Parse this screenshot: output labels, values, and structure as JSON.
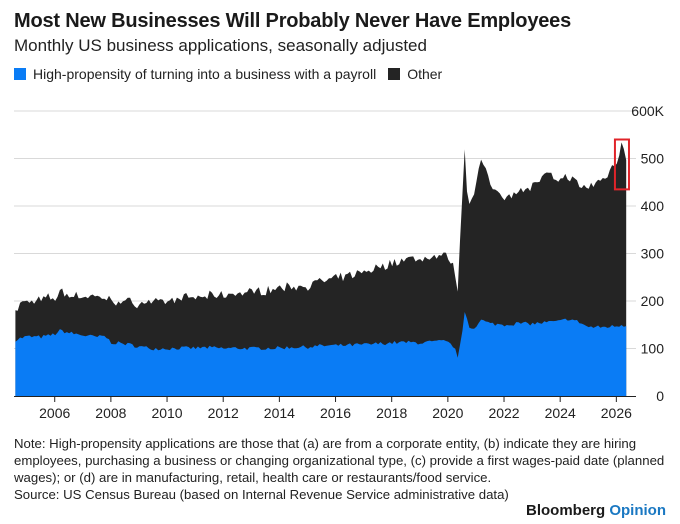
{
  "header": {
    "title": "Most New Businesses Will Probably Never Have Employees",
    "subtitle": "Monthly US business applications, seasonally adjusted"
  },
  "legend": {
    "items": [
      {
        "label": "High-propensity of turning into a business with a payroll",
        "color": "#0a7cf5"
      },
      {
        "label": "Other",
        "color": "#242424"
      }
    ]
  },
  "footer": {
    "note": "Note: High-propensity applications are those that (a) are from a corporate entity, (b) indicate they are hiring employees, purchasing a business or changing organizational type, (c) provide a first wages-paid date (planned wages); or (d) are in manufacturing, retail, health care or restaurants/food service.",
    "source": "Source: US Census Bureau (based on Internal Revenue Service administrative data)",
    "brand_main": "Bloomberg",
    "brand_accent": "Opinion"
  },
  "colors": {
    "high_propensity": "#0a7cf5",
    "other": "#242424",
    "grid": "#d9d9d9",
    "highlight_box": "#e0242a"
  },
  "chart_data": {
    "type": "area",
    "stacked": true,
    "title": "Most New Businesses Will Probably Never Have Employees",
    "subtitle": "Monthly US business applications, seasonally adjusted",
    "xlabel": "",
    "ylabel": "",
    "xlim": [
      2004.55,
      2026.7
    ],
    "ylim": [
      0,
      600
    ],
    "y_ticks": [
      0,
      100,
      200,
      300,
      400,
      500,
      600
    ],
    "y_tick_labels": [
      "0",
      "100",
      "200",
      "300",
      "400",
      "500",
      "600K"
    ],
    "x_ticks": [
      "2006",
      "2008",
      "2010",
      "2012",
      "2014",
      "2016",
      "2018",
      "2020",
      "2022",
      "2024",
      "2026"
    ],
    "grid": true,
    "legend_position": "top-left",
    "highlight": {
      "x_start": 2025.95,
      "x_end": 2026.45,
      "y_start": 435,
      "y_end": 540
    },
    "series": [
      {
        "name": "High-propensity of turning into a business with a payroll",
        "color": "#0a7cf5",
        "points": [
          [
            2004.6,
            118
          ],
          [
            2004.8,
            122
          ],
          [
            2005.0,
            125
          ],
          [
            2005.5,
            124
          ],
          [
            2005.8,
            127
          ],
          [
            2006.0,
            130
          ],
          [
            2006.2,
            138
          ],
          [
            2006.5,
            133
          ],
          [
            2007.0,
            128
          ],
          [
            2007.5,
            124
          ],
          [
            2007.8,
            126
          ],
          [
            2008.0,
            113
          ],
          [
            2008.5,
            110
          ],
          [
            2009.0,
            104
          ],
          [
            2009.5,
            100
          ],
          [
            2010.0,
            100
          ],
          [
            2010.5,
            101
          ],
          [
            2011.0,
            101
          ],
          [
            2011.5,
            102
          ],
          [
            2012.0,
            100
          ],
          [
            2012.5,
            101
          ],
          [
            2013.0,
            100
          ],
          [
            2013.5,
            101
          ],
          [
            2014.0,
            101
          ],
          [
            2014.5,
            103
          ],
          [
            2015.0,
            103
          ],
          [
            2015.5,
            106
          ],
          [
            2016.0,
            106
          ],
          [
            2016.5,
            107
          ],
          [
            2017.0,
            108
          ],
          [
            2017.5,
            110
          ],
          [
            2018.0,
            112
          ],
          [
            2018.5,
            113
          ],
          [
            2019.0,
            112
          ],
          [
            2019.5,
            114
          ],
          [
            2019.9,
            115
          ],
          [
            2020.0,
            112
          ],
          [
            2020.2,
            105
          ],
          [
            2020.35,
            84
          ],
          [
            2020.5,
            120
          ],
          [
            2020.58,
            183
          ],
          [
            2020.7,
            160
          ],
          [
            2020.8,
            140
          ],
          [
            2021.0,
            148
          ],
          [
            2021.2,
            160
          ],
          [
            2021.5,
            152
          ],
          [
            2022.0,
            150
          ],
          [
            2022.5,
            153
          ],
          [
            2023.0,
            152
          ],
          [
            2023.5,
            155
          ],
          [
            2024.0,
            157
          ],
          [
            2024.3,
            163
          ],
          [
            2024.7,
            155
          ],
          [
            2025.0,
            145
          ],
          [
            2025.5,
            145
          ],
          [
            2026.0,
            147
          ],
          [
            2026.2,
            150
          ],
          [
            2026.35,
            148
          ]
        ]
      },
      {
        "name": "Other",
        "color": "#242424",
        "points": [
          [
            2004.6,
            60
          ],
          [
            2004.8,
            75
          ],
          [
            2005.0,
            72
          ],
          [
            2005.5,
            78
          ],
          [
            2005.8,
            80
          ],
          [
            2006.0,
            75
          ],
          [
            2006.2,
            82
          ],
          [
            2006.5,
            80
          ],
          [
            2007.0,
            82
          ],
          [
            2007.5,
            84
          ],
          [
            2007.8,
            80
          ],
          [
            2008.0,
            88
          ],
          [
            2008.5,
            88
          ],
          [
            2009.0,
            92
          ],
          [
            2009.5,
            98
          ],
          [
            2010.0,
            100
          ],
          [
            2010.5,
            104
          ],
          [
            2011.0,
            106
          ],
          [
            2011.5,
            108
          ],
          [
            2012.0,
            112
          ],
          [
            2012.5,
            116
          ],
          [
            2013.0,
            118
          ],
          [
            2013.5,
            122
          ],
          [
            2014.0,
            126
          ],
          [
            2014.5,
            128
          ],
          [
            2015.0,
            130
          ],
          [
            2015.5,
            135
          ],
          [
            2016.0,
            140
          ],
          [
            2016.5,
            146
          ],
          [
            2017.0,
            152
          ],
          [
            2017.5,
            160
          ],
          [
            2018.0,
            168
          ],
          [
            2018.5,
            175
          ],
          [
            2019.0,
            177
          ],
          [
            2019.5,
            178
          ],
          [
            2019.9,
            180
          ],
          [
            2020.0,
            178
          ],
          [
            2020.2,
            170
          ],
          [
            2020.35,
            143
          ],
          [
            2020.5,
            270
          ],
          [
            2020.58,
            370
          ],
          [
            2020.7,
            250
          ],
          [
            2020.8,
            270
          ],
          [
            2021.0,
            300
          ],
          [
            2021.2,
            340
          ],
          [
            2021.5,
            290
          ],
          [
            2022.0,
            272
          ],
          [
            2022.5,
            277
          ],
          [
            2023.0,
            290
          ],
          [
            2023.5,
            310
          ],
          [
            2024.0,
            295
          ],
          [
            2024.3,
            302
          ],
          [
            2024.7,
            285
          ],
          [
            2025.0,
            295
          ],
          [
            2025.5,
            310
          ],
          [
            2026.0,
            345
          ],
          [
            2026.2,
            390
          ],
          [
            2026.35,
            350
          ]
        ]
      }
    ]
  }
}
